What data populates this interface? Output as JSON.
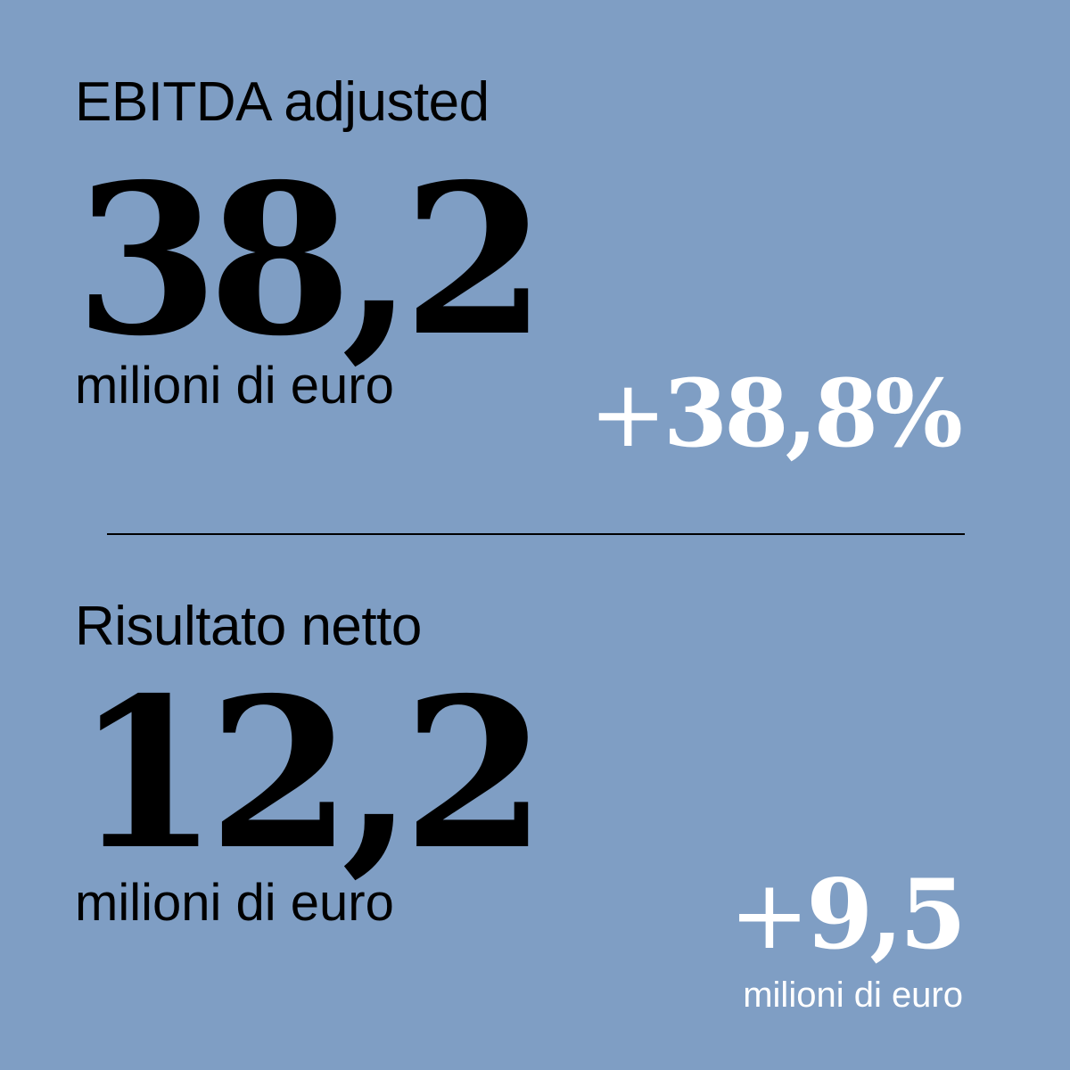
{
  "colors": {
    "background": "#7f9ec4",
    "primary_text": "#000000",
    "highlight_text": "#ffffff"
  },
  "sections": [
    {
      "label": "EBITDA adjusted",
      "value": "38,2",
      "unit": "milioni di euro",
      "change_sign": "+",
      "change_value": "38,8%"
    },
    {
      "label": "Risultato netto",
      "value": "12,2",
      "unit": "milioni di euro",
      "change_sign": "+",
      "change_value": "9,5",
      "change_unit": "milioni di euro"
    }
  ]
}
